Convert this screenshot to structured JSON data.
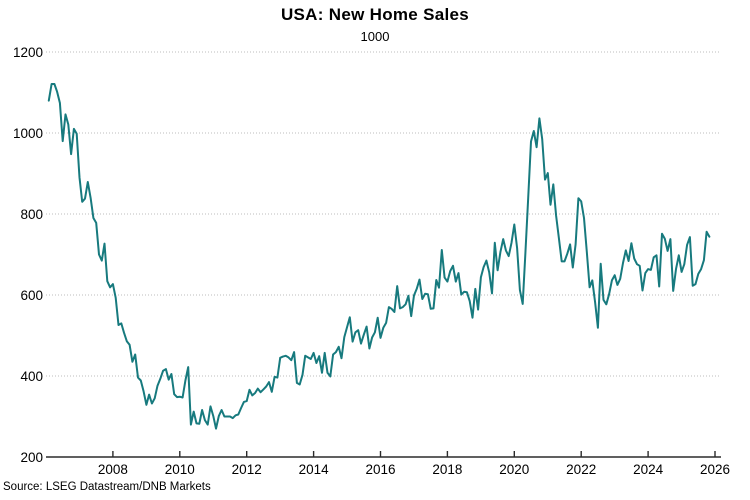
{
  "title": "USA: New Home Sales",
  "subtitle": "1000",
  "source": "Source: LSEG Datastream/DNB Markets",
  "chart_data": {
    "type": "line",
    "title": "USA: New Home Sales",
    "units_note": "1000",
    "series_name": "New home sales",
    "frequency": "monthly",
    "start_year": 2006,
    "start_month": 2,
    "xlim": [
      2006.0,
      2026.2
    ],
    "ylim": [
      200,
      1200
    ],
    "x_ticks": [
      2008,
      2010,
      2012,
      2014,
      2016,
      2018,
      2020,
      2022,
      2024,
      2026
    ],
    "y_ticks": [
      200,
      400,
      600,
      800,
      1000,
      1200
    ],
    "grid": "horizontal-dotted",
    "legend_position": "none",
    "line_color": "#177a7e",
    "grid_color": "#bcbcbc",
    "axis_color": "#2b2b2b",
    "values": [
      1080,
      1121,
      1121,
      1102,
      1074,
      980,
      1046,
      1021,
      948,
      1010,
      998,
      890,
      830,
      838,
      879,
      840,
      790,
      778,
      700,
      685,
      727,
      634,
      619,
      627,
      593,
      526,
      530,
      507,
      486,
      477,
      435,
      453,
      396,
      389,
      362,
      329,
      354,
      332,
      345,
      376,
      393,
      413,
      417,
      391,
      405,
      355,
      348,
      349,
      347,
      389,
      422,
      280,
      312,
      283,
      282,
      316,
      291,
      280,
      325,
      301,
      270,
      301,
      316,
      300,
      300,
      300,
      296,
      303,
      305,
      321,
      336,
      338,
      366,
      352,
      358,
      369,
      360,
      367,
      374,
      385,
      361,
      398,
      396,
      445,
      448,
      450,
      446,
      439,
      459,
      383,
      379,
      403,
      450,
      446,
      442,
      457,
      432,
      449,
      408,
      457,
      408,
      399,
      453,
      459,
      472,
      444,
      496,
      521,
      545,
      485,
      508,
      513,
      480,
      502,
      522,
      468,
      495,
      508,
      544,
      494,
      519,
      531,
      570,
      566,
      558,
      622,
      567,
      570,
      577,
      598,
      548,
      599,
      615,
      638,
      590,
      603,
      602,
      566,
      567,
      637,
      618,
      711,
      643,
      633,
      659,
      672,
      633,
      654,
      601,
      608,
      607,
      585,
      544,
      615,
      564,
      644,
      669,
      685,
      656,
      604,
      729,
      661,
      706,
      738,
      710,
      696,
      729,
      774,
      716,
      612,
      578,
      704,
      840,
      979,
      1005,
      965,
      1036,
      985,
      885,
      901,
      823,
      873,
      796,
      740,
      683,
      683,
      702,
      725,
      668,
      725,
      839,
      831,
      790,
      707,
      619,
      636,
      582,
      519,
      677,
      588,
      577,
      602,
      636,
      649,
      625,
      640,
      679,
      710,
      684,
      728,
      690,
      676,
      672,
      611,
      654,
      664,
      662,
      693,
      698,
      621,
      751,
      739,
      709,
      738,
      610,
      664,
      698,
      657,
      676,
      724,
      743,
      623,
      627,
      652,
      664,
      686,
      756,
      744
    ]
  }
}
